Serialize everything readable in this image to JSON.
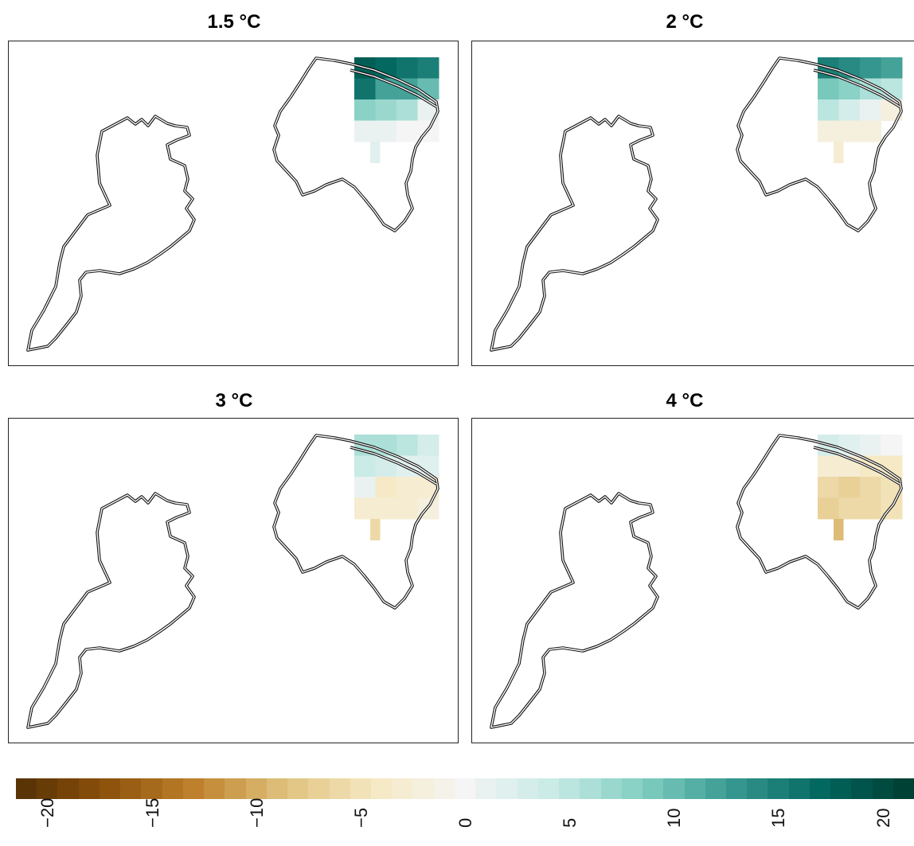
{
  "panels": [
    {
      "title": "1.5 °C",
      "warming_level": 1.5,
      "relative_change_grid": [
        [
          18,
          17,
          16,
          15
        ],
        [
          16,
          12,
          12,
          10
        ],
        [
          8,
          7,
          6,
          1
        ],
        [
          1,
          1,
          0,
          0
        ],
        [
          2,
          null,
          null,
          null
        ]
      ]
    },
    {
      "title": "2 °C",
      "warming_level": 2,
      "relative_change_grid": [
        [
          15,
          14,
          13,
          12
        ],
        [
          9,
          8,
          6,
          5
        ],
        [
          5,
          3,
          1,
          -2
        ],
        [
          -2,
          -2,
          -2,
          null
        ],
        [
          -3,
          null,
          null,
          null
        ]
      ]
    },
    {
      "title": "3 °C",
      "warming_level": 3,
      "relative_change_grid": [
        [
          6,
          6,
          5,
          3
        ],
        [
          4,
          3,
          2,
          2
        ],
        [
          1,
          -4,
          -3,
          -3
        ],
        [
          -3,
          -3,
          -3,
          -2
        ],
        [
          -6,
          null,
          null,
          null
        ]
      ]
    },
    {
      "title": "4 °C",
      "warming_level": 4,
      "relative_change_grid": [
        [
          3,
          2,
          1,
          0
        ],
        [
          -3,
          -3,
          -4,
          -4
        ],
        [
          -6,
          -7,
          -6,
          -5
        ],
        [
          -7,
          -6,
          -6,
          -5
        ],
        [
          -9,
          null,
          null,
          null
        ]
      ]
    }
  ],
  "colorbar": {
    "tick_labels": [
      "−20",
      "−15",
      "−10",
      "−5",
      "0",
      "5",
      "10",
      "15",
      "20"
    ],
    "range": [
      -21.5,
      21.5
    ],
    "colors": {
      "negative_end": "#543005",
      "neutral": "#f5f5f5",
      "positive_end": "#003c30"
    }
  }
}
